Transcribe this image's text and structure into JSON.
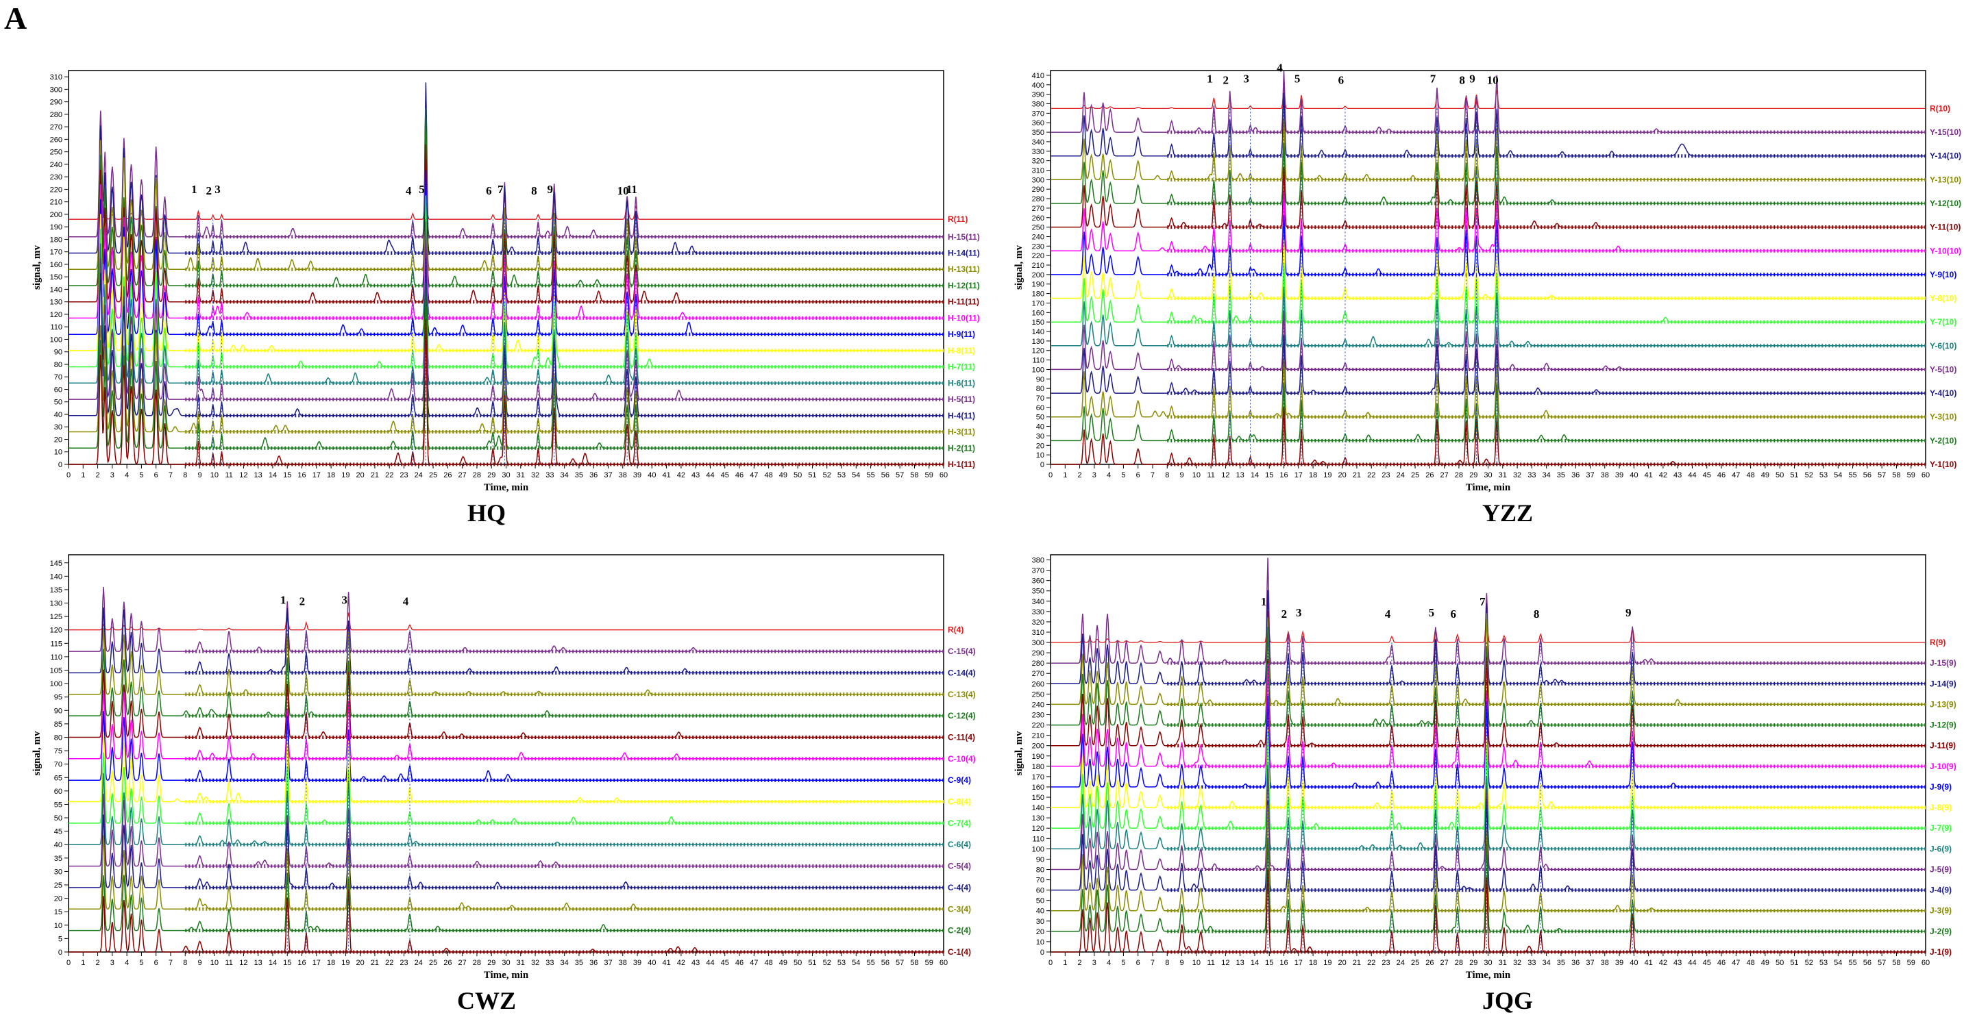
{
  "figure_label": "A",
  "chart_data": [
    {
      "type": "line",
      "title": "HQ",
      "xlabel": "Time, min",
      "ylabel": "signal, mv",
      "xlim": [
        0,
        60
      ],
      "ylim": [
        0,
        315
      ],
      "yticks": [
        0,
        10,
        20,
        30,
        40,
        50,
        60,
        70,
        80,
        90,
        100,
        110,
        120,
        130,
        140,
        150,
        160,
        170,
        180,
        190,
        200,
        210,
        220,
        230,
        240,
        250,
        260,
        270,
        280,
        290,
        300,
        310
      ],
      "grid": false,
      "legend": "right",
      "series": [
        {
          "name": "R(11)",
          "color": "#e31a1c",
          "baseline": 196
        },
        {
          "name": "H-15(11)",
          "color": "#7b2d8e",
          "baseline": 182
        },
        {
          "name": "H-14(11)",
          "color": "#1a1a8c",
          "baseline": 169
        },
        {
          "name": "H-13(11)",
          "color": "#8b8b00",
          "baseline": 156
        },
        {
          "name": "H-12(11)",
          "color": "#1b7a1b",
          "baseline": 143
        },
        {
          "name": "H-11(11)",
          "color": "#8b0000",
          "baseline": 130
        },
        {
          "name": "H-10(11)",
          "color": "#ff00ff",
          "baseline": 117
        },
        {
          "name": "H-9(11)",
          "color": "#0000ff",
          "baseline": 104
        },
        {
          "name": "H-8(11)",
          "color": "#ffff00",
          "baseline": 91
        },
        {
          "name": "H-7(11)",
          "color": "#33ff33",
          "baseline": 78
        },
        {
          "name": "H-6(11)",
          "color": "#1a8080",
          "baseline": 65
        },
        {
          "name": "H-5(11)",
          "color": "#7b2d8e",
          "baseline": 52
        },
        {
          "name": "H-4(11)",
          "color": "#1a1a8c",
          "baseline": 39
        },
        {
          "name": "H-3(11)",
          "color": "#8b8b00",
          "baseline": 26
        },
        {
          "name": "H-2(11)",
          "color": "#1b7a1b",
          "baseline": 13
        },
        {
          "name": "H-1(11)",
          "color": "#8b0000",
          "baseline": 0
        }
      ],
      "peaks": [
        {
          "label": "1",
          "t": 8.9
        },
        {
          "label": "2",
          "t": 9.9
        },
        {
          "label": "3",
          "t": 10.5
        },
        {
          "label": "4",
          "t": 23.6
        },
        {
          "label": "5",
          "t": 24.5
        },
        {
          "label": "6",
          "t": 29.1
        },
        {
          "label": "7",
          "t": 29.9
        },
        {
          "label": "8",
          "t": 32.2
        },
        {
          "label": "9",
          "t": 33.3
        },
        {
          "label": "10",
          "t": 38.3
        },
        {
          "label": "11",
          "t": 38.9
        }
      ]
    },
    {
      "type": "line",
      "title": "YZZ",
      "xlabel": "Time, min",
      "ylabel": "signal, mv",
      "xlim": [
        0,
        60
      ],
      "ylim": [
        0,
        415
      ],
      "yticks": [
        0,
        10,
        20,
        30,
        40,
        50,
        60,
        70,
        80,
        90,
        100,
        110,
        120,
        130,
        140,
        150,
        160,
        170,
        180,
        190,
        200,
        210,
        220,
        230,
        240,
        250,
        260,
        270,
        280,
        290,
        300,
        310,
        320,
        330,
        340,
        350,
        360,
        370,
        380,
        390,
        400,
        410
      ],
      "grid": false,
      "legend": "right",
      "series": [
        {
          "name": "R(10)",
          "color": "#e31a1c",
          "baseline": 375
        },
        {
          "name": "Y-15(10)",
          "color": "#7b2d8e",
          "baseline": 350
        },
        {
          "name": "Y-14(10)",
          "color": "#1a1a8c",
          "baseline": 325
        },
        {
          "name": "Y-13(10)",
          "color": "#8b8b00",
          "baseline": 300
        },
        {
          "name": "Y-12(10)",
          "color": "#1b7a1b",
          "baseline": 275
        },
        {
          "name": "Y-11(10)",
          "color": "#8b0000",
          "baseline": 250
        },
        {
          "name": "Y-10(10)",
          "color": "#ff00ff",
          "baseline": 225
        },
        {
          "name": "Y-9(10)",
          "color": "#0000ff",
          "baseline": 200
        },
        {
          "name": "Y-8(10)",
          "color": "#ffff00",
          "baseline": 175
        },
        {
          "name": "Y-7(10)",
          "color": "#33ff33",
          "baseline": 150
        },
        {
          "name": "Y-6(10)",
          "color": "#1a8080",
          "baseline": 125
        },
        {
          "name": "Y-5(10)",
          "color": "#7b2d8e",
          "baseline": 100
        },
        {
          "name": "Y-4(10)",
          "color": "#1a1a8c",
          "baseline": 75
        },
        {
          "name": "Y-3(10)",
          "color": "#8b8b00",
          "baseline": 50
        },
        {
          "name": "Y-2(10)",
          "color": "#1b7a1b",
          "baseline": 25
        },
        {
          "name": "Y-1(10)",
          "color": "#8b0000",
          "baseline": 0
        }
      ],
      "peaks": [
        {
          "label": "1",
          "t": 11.2
        },
        {
          "label": "2",
          "t": 12.3
        },
        {
          "label": "3",
          "t": 13.7
        },
        {
          "label": "4",
          "t": 16.0
        },
        {
          "label": "5",
          "t": 17.2
        },
        {
          "label": "6",
          "t": 20.2
        },
        {
          "label": "7",
          "t": 26.5
        },
        {
          "label": "8",
          "t": 28.5
        },
        {
          "label": "9",
          "t": 29.2
        },
        {
          "label": "10",
          "t": 30.6
        }
      ]
    },
    {
      "type": "line",
      "title": "CWZ",
      "xlabel": "Time, min",
      "ylabel": "signal, mv",
      "xlim": [
        0,
        60
      ],
      "ylim": [
        0,
        148
      ],
      "yticks": [
        0,
        5,
        10,
        15,
        20,
        25,
        30,
        35,
        40,
        45,
        50,
        55,
        60,
        65,
        70,
        75,
        80,
        85,
        90,
        95,
        100,
        105,
        110,
        115,
        120,
        125,
        130,
        135,
        140,
        145
      ],
      "grid": false,
      "legend": "right",
      "series": [
        {
          "name": "R(4)",
          "color": "#e31a1c",
          "baseline": 120
        },
        {
          "name": "C-15(4)",
          "color": "#7b2d8e",
          "baseline": 112
        },
        {
          "name": "C-14(4)",
          "color": "#1a1a8c",
          "baseline": 104
        },
        {
          "name": "C-13(4)",
          "color": "#8b8b00",
          "baseline": 96
        },
        {
          "name": "C-12(4)",
          "color": "#1b7a1b",
          "baseline": 88
        },
        {
          "name": "C-11(4)",
          "color": "#8b0000",
          "baseline": 80
        },
        {
          "name": "C-10(4)",
          "color": "#ff00ff",
          "baseline": 72
        },
        {
          "name": "C-9(4)",
          "color": "#0000ff",
          "baseline": 64
        },
        {
          "name": "C-8(4)",
          "color": "#ffff00",
          "baseline": 56
        },
        {
          "name": "C-7(4)",
          "color": "#33ff33",
          "baseline": 48
        },
        {
          "name": "C-6(4)",
          "color": "#1a8080",
          "baseline": 40
        },
        {
          "name": "C-5(4)",
          "color": "#7b2d8e",
          "baseline": 32
        },
        {
          "name": "C-4(4)",
          "color": "#1a1a8c",
          "baseline": 24
        },
        {
          "name": "C-3(4)",
          "color": "#8b8b00",
          "baseline": 16
        },
        {
          "name": "C-2(4)",
          "color": "#1b7a1b",
          "baseline": 8
        },
        {
          "name": "C-1(4)",
          "color": "#8b0000",
          "baseline": 0
        }
      ],
      "peaks": [
        {
          "label": "1",
          "t": 15.0
        },
        {
          "label": "2",
          "t": 16.3
        },
        {
          "label": "3",
          "t": 19.2
        },
        {
          "label": "4",
          "t": 23.4
        }
      ]
    },
    {
      "type": "line",
      "title": "JQG",
      "xlabel": "Time, min",
      "ylabel": "signal, mv",
      "xlim": [
        0,
        60
      ],
      "ylim": [
        0,
        385
      ],
      "yticks": [
        0,
        10,
        20,
        30,
        40,
        50,
        60,
        70,
        80,
        90,
        100,
        110,
        120,
        130,
        140,
        150,
        160,
        170,
        180,
        190,
        200,
        210,
        220,
        230,
        240,
        250,
        260,
        270,
        280,
        290,
        300,
        310,
        320,
        330,
        340,
        350,
        360,
        370,
        380
      ],
      "grid": false,
      "legend": "right",
      "series": [
        {
          "name": "R(9)",
          "color": "#e31a1c",
          "baseline": 300
        },
        {
          "name": "J-15(9)",
          "color": "#7b2d8e",
          "baseline": 280
        },
        {
          "name": "J-14(9)",
          "color": "#1a1a8c",
          "baseline": 260
        },
        {
          "name": "J-13(9)",
          "color": "#8b8b00",
          "baseline": 240
        },
        {
          "name": "J-12(9)",
          "color": "#1b7a1b",
          "baseline": 220
        },
        {
          "name": "J-11(9)",
          "color": "#8b0000",
          "baseline": 200
        },
        {
          "name": "J-10(9)",
          "color": "#ff00ff",
          "baseline": 180
        },
        {
          "name": "J-9(9)",
          "color": "#0000ff",
          "baseline": 160
        },
        {
          "name": "J-8(9)",
          "color": "#ffff00",
          "baseline": 140
        },
        {
          "name": "J-7(9)",
          "color": "#33ff33",
          "baseline": 120
        },
        {
          "name": "J-6(9)",
          "color": "#1a8080",
          "baseline": 100
        },
        {
          "name": "J-5(9)",
          "color": "#7b2d8e",
          "baseline": 80
        },
        {
          "name": "J-4(9)",
          "color": "#1a1a8c",
          "baseline": 60
        },
        {
          "name": "J-3(9)",
          "color": "#8b8b00",
          "baseline": 40
        },
        {
          "name": "J-2(9)",
          "color": "#1b7a1b",
          "baseline": 20
        },
        {
          "name": "J-1(9)",
          "color": "#8b0000",
          "baseline": 0
        }
      ],
      "peaks": [
        {
          "label": "1",
          "t": 14.9
        },
        {
          "label": "2",
          "t": 16.3
        },
        {
          "label": "3",
          "t": 17.3
        },
        {
          "label": "4",
          "t": 23.4
        },
        {
          "label": "5",
          "t": 26.4
        },
        {
          "label": "6",
          "t": 27.9
        },
        {
          "label": "7",
          "t": 29.9
        },
        {
          "label": "8",
          "t": 33.6
        },
        {
          "label": "9",
          "t": 39.9
        }
      ]
    }
  ]
}
